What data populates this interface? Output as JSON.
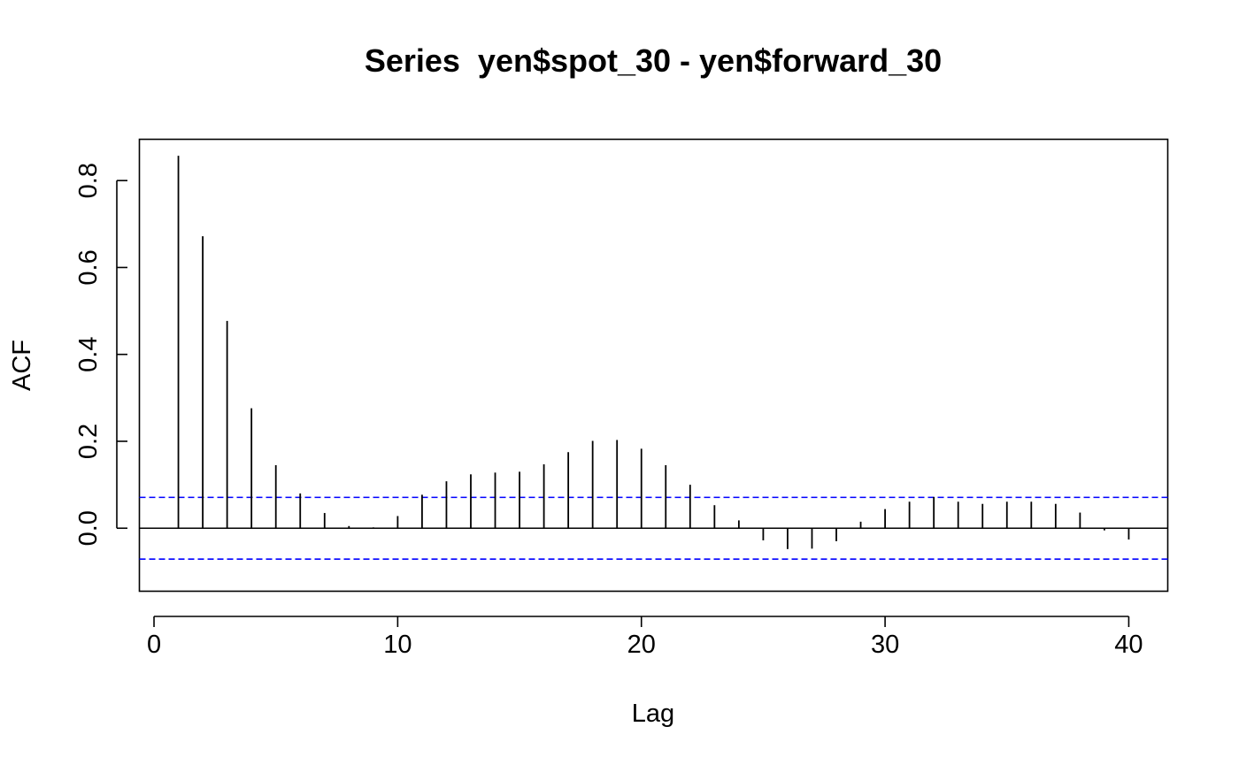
{
  "chart_data": {
    "type": "bar",
    "subtype": "acf",
    "title": "Series  yen$spot_30 - yen$forward_30",
    "xlabel": "Lag",
    "ylabel": "ACF",
    "xlim": [
      -0.6,
      41.6
    ],
    "ylim": [
      -0.145,
      0.895
    ],
    "x_ticks": [
      0,
      10,
      20,
      30,
      40
    ],
    "x_tick_labels": [
      "0",
      "10",
      "20",
      "30",
      "40"
    ],
    "y_ticks": [
      0.0,
      0.2,
      0.4,
      0.6,
      0.8
    ],
    "y_tick_labels": [
      "0.0",
      "0.2",
      "0.4",
      "0.6",
      "0.8"
    ],
    "confidence_limit": 0.071,
    "grid": false,
    "legend": "none",
    "colors": {
      "bars": "#000000",
      "confidence_lines": "#0000ff",
      "zero_line": "#000000"
    },
    "lags": [
      1,
      2,
      3,
      4,
      5,
      6,
      7,
      8,
      9,
      10,
      11,
      12,
      13,
      14,
      15,
      16,
      17,
      18,
      19,
      20,
      21,
      22,
      23,
      24,
      25,
      26,
      27,
      28,
      29,
      30,
      31,
      32,
      33,
      34,
      35,
      36,
      37,
      38,
      39,
      40
    ],
    "values": [
      0.857,
      0.672,
      0.477,
      0.276,
      0.145,
      0.08,
      0.035,
      0.005,
      0.002,
      0.028,
      0.077,
      0.108,
      0.124,
      0.128,
      0.13,
      0.147,
      0.175,
      0.201,
      0.203,
      0.183,
      0.145,
      0.1,
      0.053,
      0.018,
      -0.028,
      -0.048,
      -0.047,
      -0.03,
      0.015,
      0.044,
      0.061,
      0.072,
      0.061,
      0.056,
      0.061,
      0.061,
      0.056,
      0.036,
      -0.005,
      -0.026
    ]
  }
}
